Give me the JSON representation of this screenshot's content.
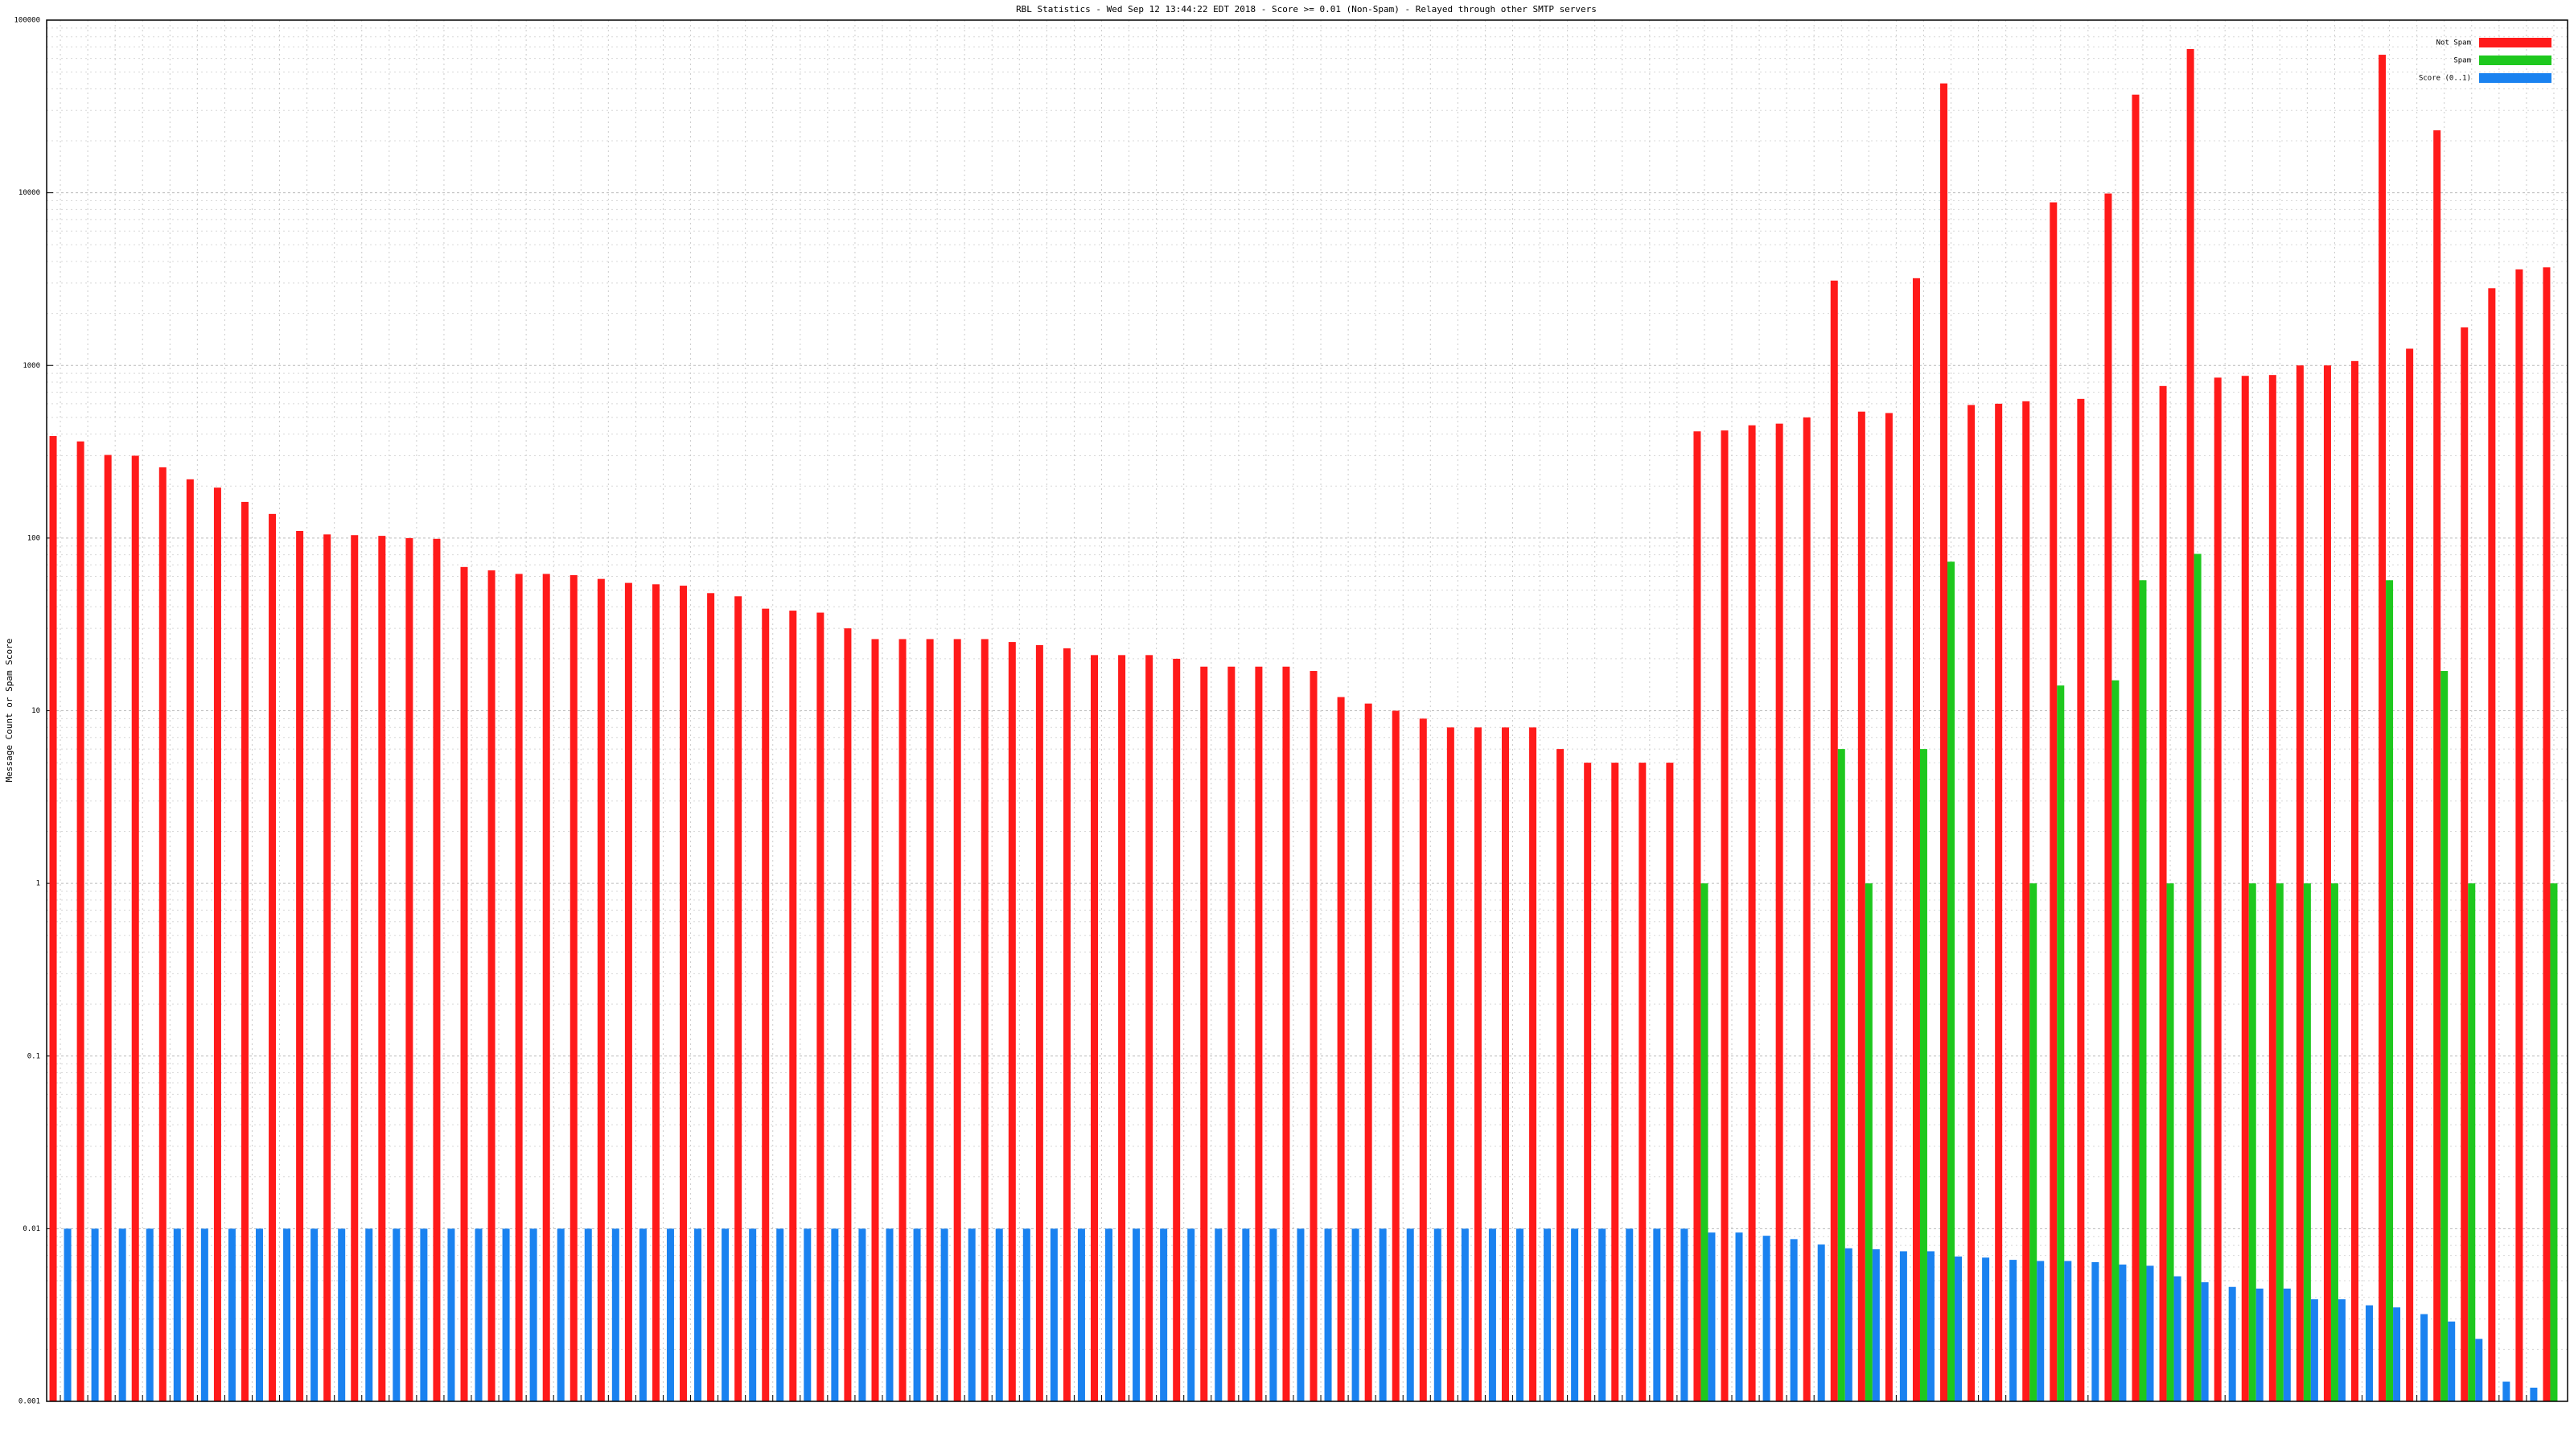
{
  "chart_data": {
    "type": "bar",
    "title": "RBL Statistics - Wed Sep 12 13:44:22 EDT 2018 - Score >= 0.01 (Non-Spam) - Relayed through other SMTP servers",
    "y_label": "Message Count or Spam Score",
    "log_scale": true,
    "grid": true,
    "legend": "top-right",
    "ylim": [
      0.001,
      100000
    ],
    "yticks": [
      0.001,
      0.01,
      0.1,
      1,
      10,
      100,
      1000,
      10000,
      100000
    ],
    "categories": [
      null,
      null,
      null,
      null,
      null,
      null,
      null,
      null,
      null,
      null,
      null,
      null,
      null,
      null,
      null,
      null,
      null,
      null,
      null,
      null,
      null,
      null,
      null,
      null,
      null,
      null,
      null,
      null,
      null,
      null,
      null,
      null,
      null,
      null,
      null,
      null,
      null,
      null,
      null,
      null,
      null,
      null,
      null,
      null,
      null,
      null,
      null,
      null,
      null,
      null,
      null,
      null,
      null,
      null,
      null,
      null,
      null,
      null,
      null,
      null,
      null,
      null,
      null,
      null,
      null,
      null,
      null,
      null,
      null,
      null,
      null,
      null,
      null,
      null,
      null,
      null,
      null,
      null,
      null,
      null,
      null,
      null,
      null,
      null,
      null,
      null,
      null,
      null,
      null,
      null,
      null,
      null
    ],
    "series": [
      {
        "name": "Not Spam",
        "color": "#ff1a1a",
        "values": [
          390,
          363,
          303,
          300,
          257,
          219,
          196,
          162,
          138,
          110,
          105,
          104,
          103,
          100,
          99,
          68,
          65,
          62,
          62,
          61,
          58,
          55,
          54,
          53,
          48,
          46,
          39,
          38,
          37,
          30,
          26,
          26,
          26,
          26,
          26,
          25,
          24,
          23,
          21,
          21,
          21,
          20,
          18,
          18,
          18,
          18,
          17,
          12,
          11,
          10,
          9,
          8,
          8,
          8,
          8,
          6,
          5,
          5,
          5,
          5,
          415,
          420,
          450,
          460,
          500,
          3100,
          540,
          530,
          3200,
          43000,
          590,
          600,
          620,
          8800,
          640,
          9900,
          37000,
          760,
          68000,
          850,
          870,
          880,
          1000,
          1000,
          1060,
          63000,
          1250,
          23000,
          1660,
          2800,
          3600,
          3700
        ]
      },
      {
        "name": "Spam",
        "color": "#1ec81e",
        "values": [
          null,
          null,
          null,
          null,
          null,
          null,
          null,
          null,
          null,
          null,
          null,
          null,
          null,
          null,
          null,
          null,
          null,
          null,
          null,
          null,
          null,
          null,
          null,
          null,
          null,
          null,
          null,
          null,
          null,
          null,
          null,
          null,
          null,
          null,
          null,
          null,
          null,
          null,
          null,
          null,
          null,
          null,
          null,
          null,
          null,
          null,
          null,
          null,
          null,
          null,
          null,
          null,
          null,
          null,
          null,
          null,
          null,
          null,
          null,
          null,
          1,
          null,
          null,
          null,
          null,
          6,
          1,
          null,
          6,
          73,
          null,
          null,
          1,
          14,
          null,
          15,
          57,
          1,
          81,
          null,
          1,
          1,
          1,
          1,
          null,
          57,
          null,
          17,
          1,
          null,
          null,
          1
        ]
      },
      {
        "name": "Score (0..1)",
        "color": "#1a82f0",
        "values": [
          0.01,
          0.01,
          0.01,
          0.01,
          0.01,
          0.01,
          0.01,
          0.01,
          0.01,
          0.01,
          0.01,
          0.01,
          0.01,
          0.01,
          0.01,
          0.01,
          0.01,
          0.01,
          0.01,
          0.01,
          0.01,
          0.01,
          0.01,
          0.01,
          0.01,
          0.01,
          0.01,
          0.01,
          0.01,
          0.01,
          0.01,
          0.01,
          0.01,
          0.01,
          0.01,
          0.01,
          0.01,
          0.01,
          0.01,
          0.01,
          0.01,
          0.01,
          0.01,
          0.01,
          0.01,
          0.01,
          0.01,
          0.01,
          0.01,
          0.01,
          0.01,
          0.01,
          0.01,
          0.01,
          0.01,
          0.01,
          0.01,
          0.01,
          0.01,
          0.01,
          0.0095,
          0.0095,
          0.0091,
          0.0087,
          0.0081,
          0.0077,
          0.0076,
          0.0074,
          0.0074,
          0.0069,
          0.0068,
          0.0066,
          0.0065,
          0.0065,
          0.0064,
          0.0062,
          0.0061,
          0.0053,
          0.0049,
          0.0046,
          0.0045,
          0.0045,
          0.0039,
          0.0039,
          0.0036,
          0.0035,
          0.0032,
          0.0029,
          0.0023,
          0.0013,
          0.0012,
          null
        ]
      }
    ]
  }
}
